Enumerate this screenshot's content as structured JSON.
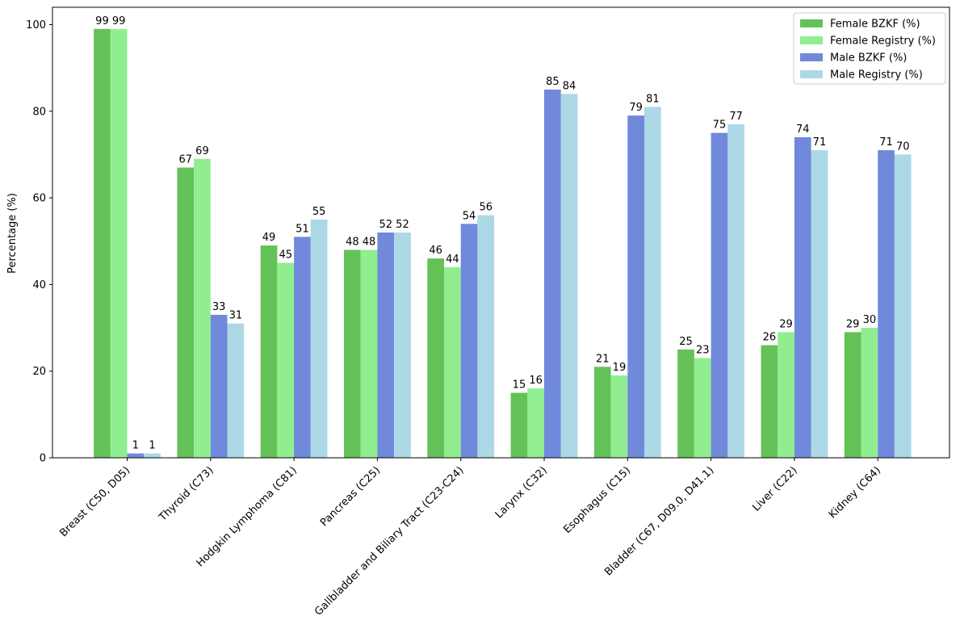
{
  "chart_data": {
    "type": "bar",
    "categories": [
      "Breast (C50, D05)",
      "Thyroid (C73)",
      "Hodgkin Lymphoma (C81)",
      "Pancreas (C25)",
      "Gallbladder and Biliary Tract (C23-C24)",
      "Larynx (C32)",
      "Esophagus (C15)",
      "Bladder (C67, D09.0, D41.1)",
      "Liver (C22)",
      "Kidney (C64)"
    ],
    "series": [
      {
        "name": "Female BZKF (%)",
        "color": "#64c158",
        "values": [
          99,
          67,
          49,
          48,
          46,
          15,
          21,
          25,
          26,
          29
        ]
      },
      {
        "name": "Female Registry (%)",
        "color": "#90ee90",
        "values": [
          99,
          69,
          45,
          48,
          44,
          16,
          19,
          23,
          29,
          30
        ]
      },
      {
        "name": "Male BZKF (%)",
        "color": "#7089da",
        "values": [
          1,
          33,
          51,
          52,
          54,
          85,
          79,
          75,
          74,
          71
        ]
      },
      {
        "name": "Male Registry (%)",
        "color": "#add8e6",
        "values": [
          1,
          31,
          55,
          52,
          56,
          84,
          81,
          77,
          71,
          70
        ]
      }
    ],
    "title": "",
    "xlabel": "",
    "ylabel": "Percentage (%)",
    "ylim": [
      0,
      104
    ],
    "yticks": [
      0,
      20,
      40,
      60,
      80,
      100
    ],
    "grid": false,
    "legend_position": "top-right"
  }
}
